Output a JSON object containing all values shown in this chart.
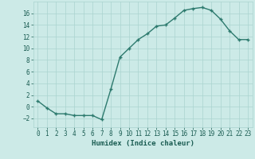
{
  "x": [
    0,
    1,
    2,
    3,
    4,
    5,
    6,
    7,
    8,
    9,
    10,
    11,
    12,
    13,
    14,
    15,
    16,
    17,
    18,
    19,
    20,
    21,
    22,
    23
  ],
  "y": [
    1,
    -0.2,
    -1.2,
    -1.2,
    -1.5,
    -1.5,
    -1.5,
    -2.2,
    3.0,
    8.5,
    10.0,
    11.5,
    12.5,
    13.8,
    14.0,
    15.2,
    16.5,
    16.8,
    17.0,
    16.5,
    15.0,
    13.0,
    11.5,
    11.5
  ],
  "line_color": "#2d7a6e",
  "marker": "+",
  "markersize": 3,
  "markeredgewidth": 1.0,
  "linewidth": 1.0,
  "bg_color": "#cceae7",
  "grid_color": "#aad4d0",
  "xlabel": "Humidex (Indice chaleur)",
  "xlabel_fontsize": 6.5,
  "tick_fontsize": 5.5,
  "tick_color": "#1a5c52",
  "label_color": "#1a5c52",
  "ylim": [
    -3.5,
    18
  ],
  "xlim": [
    -0.5,
    23.5
  ],
  "yticks": [
    -2,
    0,
    2,
    4,
    6,
    8,
    10,
    12,
    14,
    16
  ],
  "xticks": [
    0,
    1,
    2,
    3,
    4,
    5,
    6,
    7,
    8,
    9,
    10,
    11,
    12,
    13,
    14,
    15,
    16,
    17,
    18,
    19,
    20,
    21,
    22,
    23
  ]
}
